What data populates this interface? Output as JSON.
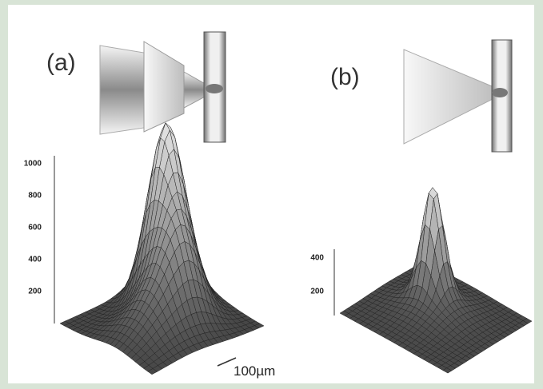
{
  "panels": [
    {
      "label": "(a)",
      "z_ticks": [
        1000,
        800,
        600,
        400,
        200
      ]
    },
    {
      "label": "(b)",
      "z_ticks": [
        400,
        200
      ]
    }
  ],
  "scale_bar": "100µm"
}
